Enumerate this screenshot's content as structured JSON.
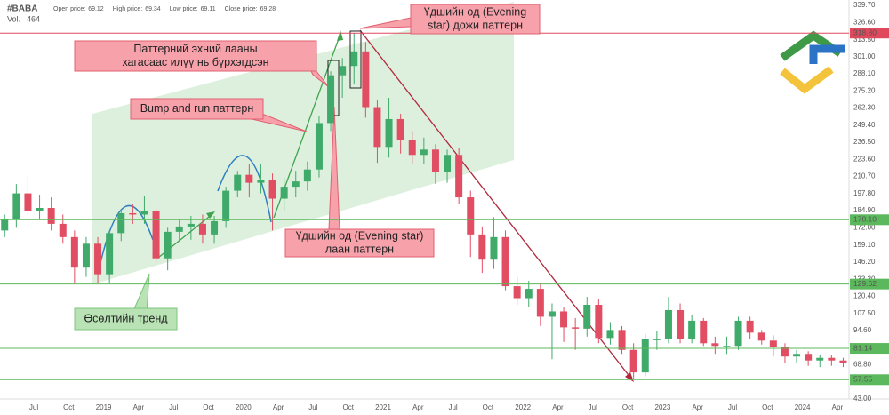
{
  "header": {
    "symbol": "#BABA",
    "fields": [
      {
        "label": "Open price:",
        "value": 69.12
      },
      {
        "label": "High price:",
        "value": 69.34
      },
      {
        "label": "Low price:",
        "value": 69.11
      },
      {
        "label": "Close price:",
        "value": 69.28
      }
    ],
    "volume_label": "Vol.",
    "volume": 464
  },
  "chart_data": {
    "type": "candlestick",
    "x": [
      "2018-04",
      "2018-05",
      "2018-06",
      "2018-07",
      "2018-08",
      "2018-09",
      "2018-10",
      "2018-11",
      "2018-12",
      "2019-01",
      "2019-02",
      "2019-03",
      "2019-04",
      "2019-05",
      "2019-06",
      "2019-07",
      "2019-08",
      "2019-09",
      "2019-10",
      "2019-11",
      "2019-12",
      "2020-01",
      "2020-02",
      "2020-03",
      "2020-04",
      "2020-05",
      "2020-06",
      "2020-07",
      "2020-08",
      "2020-09",
      "2020-10",
      "2020-11",
      "2020-12",
      "2021-01",
      "2021-02",
      "2021-03",
      "2021-04",
      "2021-05",
      "2021-06",
      "2021-07",
      "2021-08",
      "2021-09",
      "2021-10",
      "2021-11",
      "2021-12",
      "2022-01",
      "2022-02",
      "2022-03",
      "2022-04",
      "2022-05",
      "2022-06",
      "2022-07",
      "2022-08",
      "2022-09",
      "2022-10",
      "2022-11",
      "2022-12",
      "2023-01",
      "2023-02",
      "2023-03",
      "2023-04",
      "2023-05",
      "2023-06",
      "2023-07",
      "2023-08",
      "2023-09",
      "2023-10",
      "2023-11",
      "2023-12",
      "2024-01",
      "2024-02",
      "2024-03",
      "2024-04"
    ],
    "open": [
      170,
      178,
      198,
      185,
      187,
      175,
      165,
      142,
      160,
      137,
      168,
      183,
      182,
      185,
      149,
      169,
      173,
      175,
      167,
      177,
      200,
      212,
      206,
      208,
      194,
      203,
      207,
      216,
      251,
      287,
      294,
      305,
      263,
      233,
      254,
      238,
      227,
      231,
      214,
      227,
      195,
      167,
      148,
      165,
      128,
      119,
      126,
      105,
      109,
      97,
      96,
      114,
      89,
      95,
      80,
      63,
      88,
      88,
      110,
      88,
      102,
      85,
      83,
      83,
      102,
      93,
      87,
      82,
      75,
      77,
      72,
      74,
      72
    ],
    "high": [
      182,
      205,
      211,
      197,
      195,
      182,
      170,
      165,
      165,
      170,
      186,
      190,
      196,
      188,
      172,
      178,
      181,
      182,
      181,
      203,
      215,
      220,
      220,
      213,
      210,
      215,
      222,
      256,
      290,
      300,
      319,
      312,
      268,
      270,
      258,
      245,
      240,
      235,
      231,
      232,
      200,
      173,
      180,
      170,
      135,
      132,
      130,
      115,
      112,
      104,
      120,
      118,
      101,
      98,
      85,
      92,
      94,
      120,
      115,
      106,
      104,
      90,
      90,
      105,
      105,
      95,
      91,
      85,
      80,
      79,
      76,
      76,
      74
    ],
    "low": [
      165,
      172,
      180,
      178,
      170,
      160,
      130,
      135,
      130,
      130,
      162,
      175,
      175,
      145,
      140,
      162,
      163,
      160,
      160,
      172,
      195,
      195,
      198,
      170,
      185,
      195,
      200,
      210,
      245,
      270,
      280,
      255,
      221,
      225,
      228,
      220,
      220,
      205,
      206,
      190,
      150,
      138,
      141,
      125,
      114,
      112,
      98,
      73,
      86,
      80,
      90,
      85,
      84,
      77,
      58,
      60,
      80,
      85,
      85,
      85,
      83,
      77,
      77,
      80,
      88,
      84,
      75,
      70,
      70,
      68,
      67,
      68,
      67
    ],
    "close": [
      178,
      198,
      185,
      187,
      175,
      165,
      142,
      160,
      137,
      168,
      183,
      182,
      185,
      149,
      169,
      173,
      175,
      167,
      177,
      200,
      212,
      206,
      208,
      194,
      203,
      207,
      216,
      251,
      287,
      294,
      305,
      263,
      233,
      254,
      238,
      227,
      231,
      214,
      227,
      195,
      167,
      148,
      165,
      128,
      119,
      126,
      105,
      109,
      97,
      96,
      114,
      89,
      95,
      80,
      63,
      88,
      88,
      110,
      88,
      102,
      85,
      83,
      83,
      102,
      93,
      87,
      82,
      75,
      77,
      72,
      74,
      72,
      70
    ],
    "colors": {
      "up": "#3faa6a",
      "down": "#e14d62"
    },
    "ylim": [
      43,
      339.7
    ],
    "yticks": [
      {
        "value": 339.7,
        "label": "339.70"
      },
      {
        "value": 326.6,
        "label": "326.60"
      },
      {
        "value": 313.5,
        "label": "313.50"
      },
      {
        "value": 301,
        "label": "301.00"
      },
      {
        "value": 288.1,
        "label": "288.10"
      },
      {
        "value": 275.2,
        "label": "275.20"
      },
      {
        "value": 262.3,
        "label": "262.30"
      },
      {
        "value": 249.4,
        "label": "249.40"
      },
      {
        "value": 236.5,
        "label": "236.50"
      },
      {
        "value": 223.6,
        "label": "223.60"
      },
      {
        "value": 210.7,
        "label": "210.70"
      },
      {
        "value": 197.8,
        "label": "197.80"
      },
      {
        "value": 184.9,
        "label": "184.90"
      },
      {
        "value": 172,
        "label": "172.00"
      },
      {
        "value": 159.1,
        "label": "159.10"
      },
      {
        "value": 146.2,
        "label": "146.20"
      },
      {
        "value": 133.3,
        "label": "133.30"
      },
      {
        "value": 120.4,
        "label": "120.40"
      },
      {
        "value": 107.5,
        "label": "107.50"
      },
      {
        "value": 94.6,
        "label": "94.60"
      },
      {
        "value": 81.7,
        "label": "81.70"
      },
      {
        "value": 68.8,
        "label": "68.80"
      },
      {
        "value": 55.9,
        "label": "55.90"
      },
      {
        "value": 43,
        "label": "43.00"
      }
    ],
    "xticks": [
      {
        "value": "2018-07",
        "label": "Jul"
      },
      {
        "value": "2018-10",
        "label": "Oct"
      },
      {
        "value": "2019-01",
        "label": "2019"
      },
      {
        "value": "2019-04",
        "label": "Apr"
      },
      {
        "value": "2019-07",
        "label": "Jul"
      },
      {
        "value": "2019-10",
        "label": "Oct"
      },
      {
        "value": "2020-01",
        "label": "2020"
      },
      {
        "value": "2020-04",
        "label": "Apr"
      },
      {
        "value": "2020-07",
        "label": "Jul"
      },
      {
        "value": "2020-10",
        "label": "Oct"
      },
      {
        "value": "2021-01",
        "label": "2021"
      },
      {
        "value": "2021-04",
        "label": "Apr"
      },
      {
        "value": "2021-07",
        "label": "Jul"
      },
      {
        "value": "2021-10",
        "label": "Oct"
      },
      {
        "value": "2022-01",
        "label": "2022"
      },
      {
        "value": "2022-04",
        "label": "Apr"
      },
      {
        "value": "2022-07",
        "label": "Jul"
      },
      {
        "value": "2022-10",
        "label": "Oct"
      },
      {
        "value": "2023-01",
        "label": "2023"
      },
      {
        "value": "2023-04",
        "label": "Apr"
      },
      {
        "value": "2023-07",
        "label": "Jul"
      },
      {
        "value": "2023-10",
        "label": "Oct"
      },
      {
        "value": "2024-01",
        "label": "2024"
      },
      {
        "value": "2024-04",
        "label": "Apr"
      }
    ],
    "levels": [
      {
        "value": 318.8,
        "label": "318.80",
        "color": "#e0485b"
      },
      {
        "value": 178.1,
        "label": "178.10",
        "color": "#5cb85c"
      },
      {
        "value": 129.62,
        "label": "129.62",
        "color": "#5cb85c"
      },
      {
        "value": 81.14,
        "label": "81.14",
        "color": "#5cb85c"
      },
      {
        "value": 57.55,
        "label": "57.55",
        "color": "#5cb85c"
      }
    ],
    "annotations": [
      {
        "lines": [
          "Үдшийн од (Evening",
          "star) дожи паттерн"
        ],
        "color": "#f7a1aa"
      },
      {
        "lines": [
          "Паттерний эхний лааны",
          "хагасаас илүү нь бүрхэгдсэн"
        ],
        "color": "#f7a1aa"
      },
      {
        "lines": [
          "Bump and run паттерн"
        ],
        "color": "#f7a1aa"
      },
      {
        "lines": [
          "Үдшийн од (Evening star)",
          "лаан паттерн"
        ],
        "color": "#f7a1aa"
      },
      {
        "lines": [
          "Өсөлтийн тренд"
        ],
        "color": "#b9e3b5"
      }
    ]
  }
}
